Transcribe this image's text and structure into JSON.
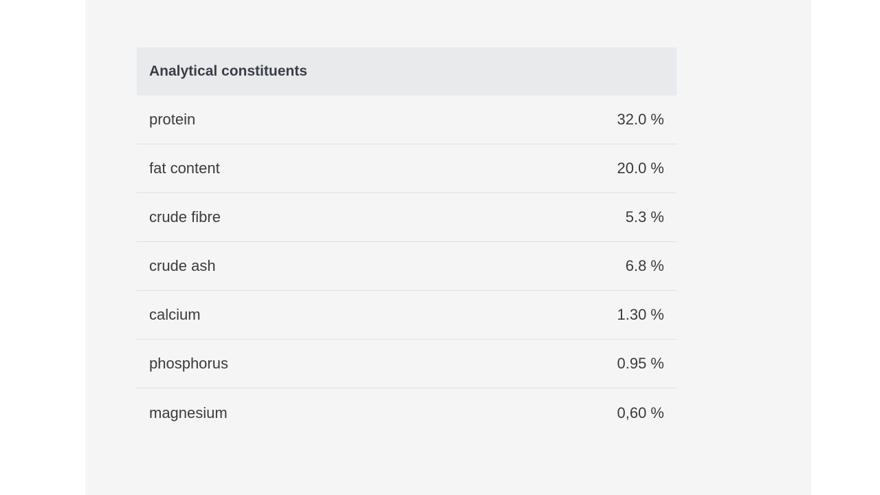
{
  "table": {
    "title": "Analytical constituents",
    "rows": [
      {
        "name": "protein",
        "value": "32.0 %"
      },
      {
        "name": "fat content",
        "value": "20.0 %"
      },
      {
        "name": "crude fibre",
        "value": "5.3 %"
      },
      {
        "name": "crude ash",
        "value": "6.8 %"
      },
      {
        "name": "calcium",
        "value": "1.30 %"
      },
      {
        "name": "phosphorus",
        "value": "0.95 %"
      },
      {
        "name": "magnesium",
        "value": "0,60 %"
      }
    ]
  }
}
